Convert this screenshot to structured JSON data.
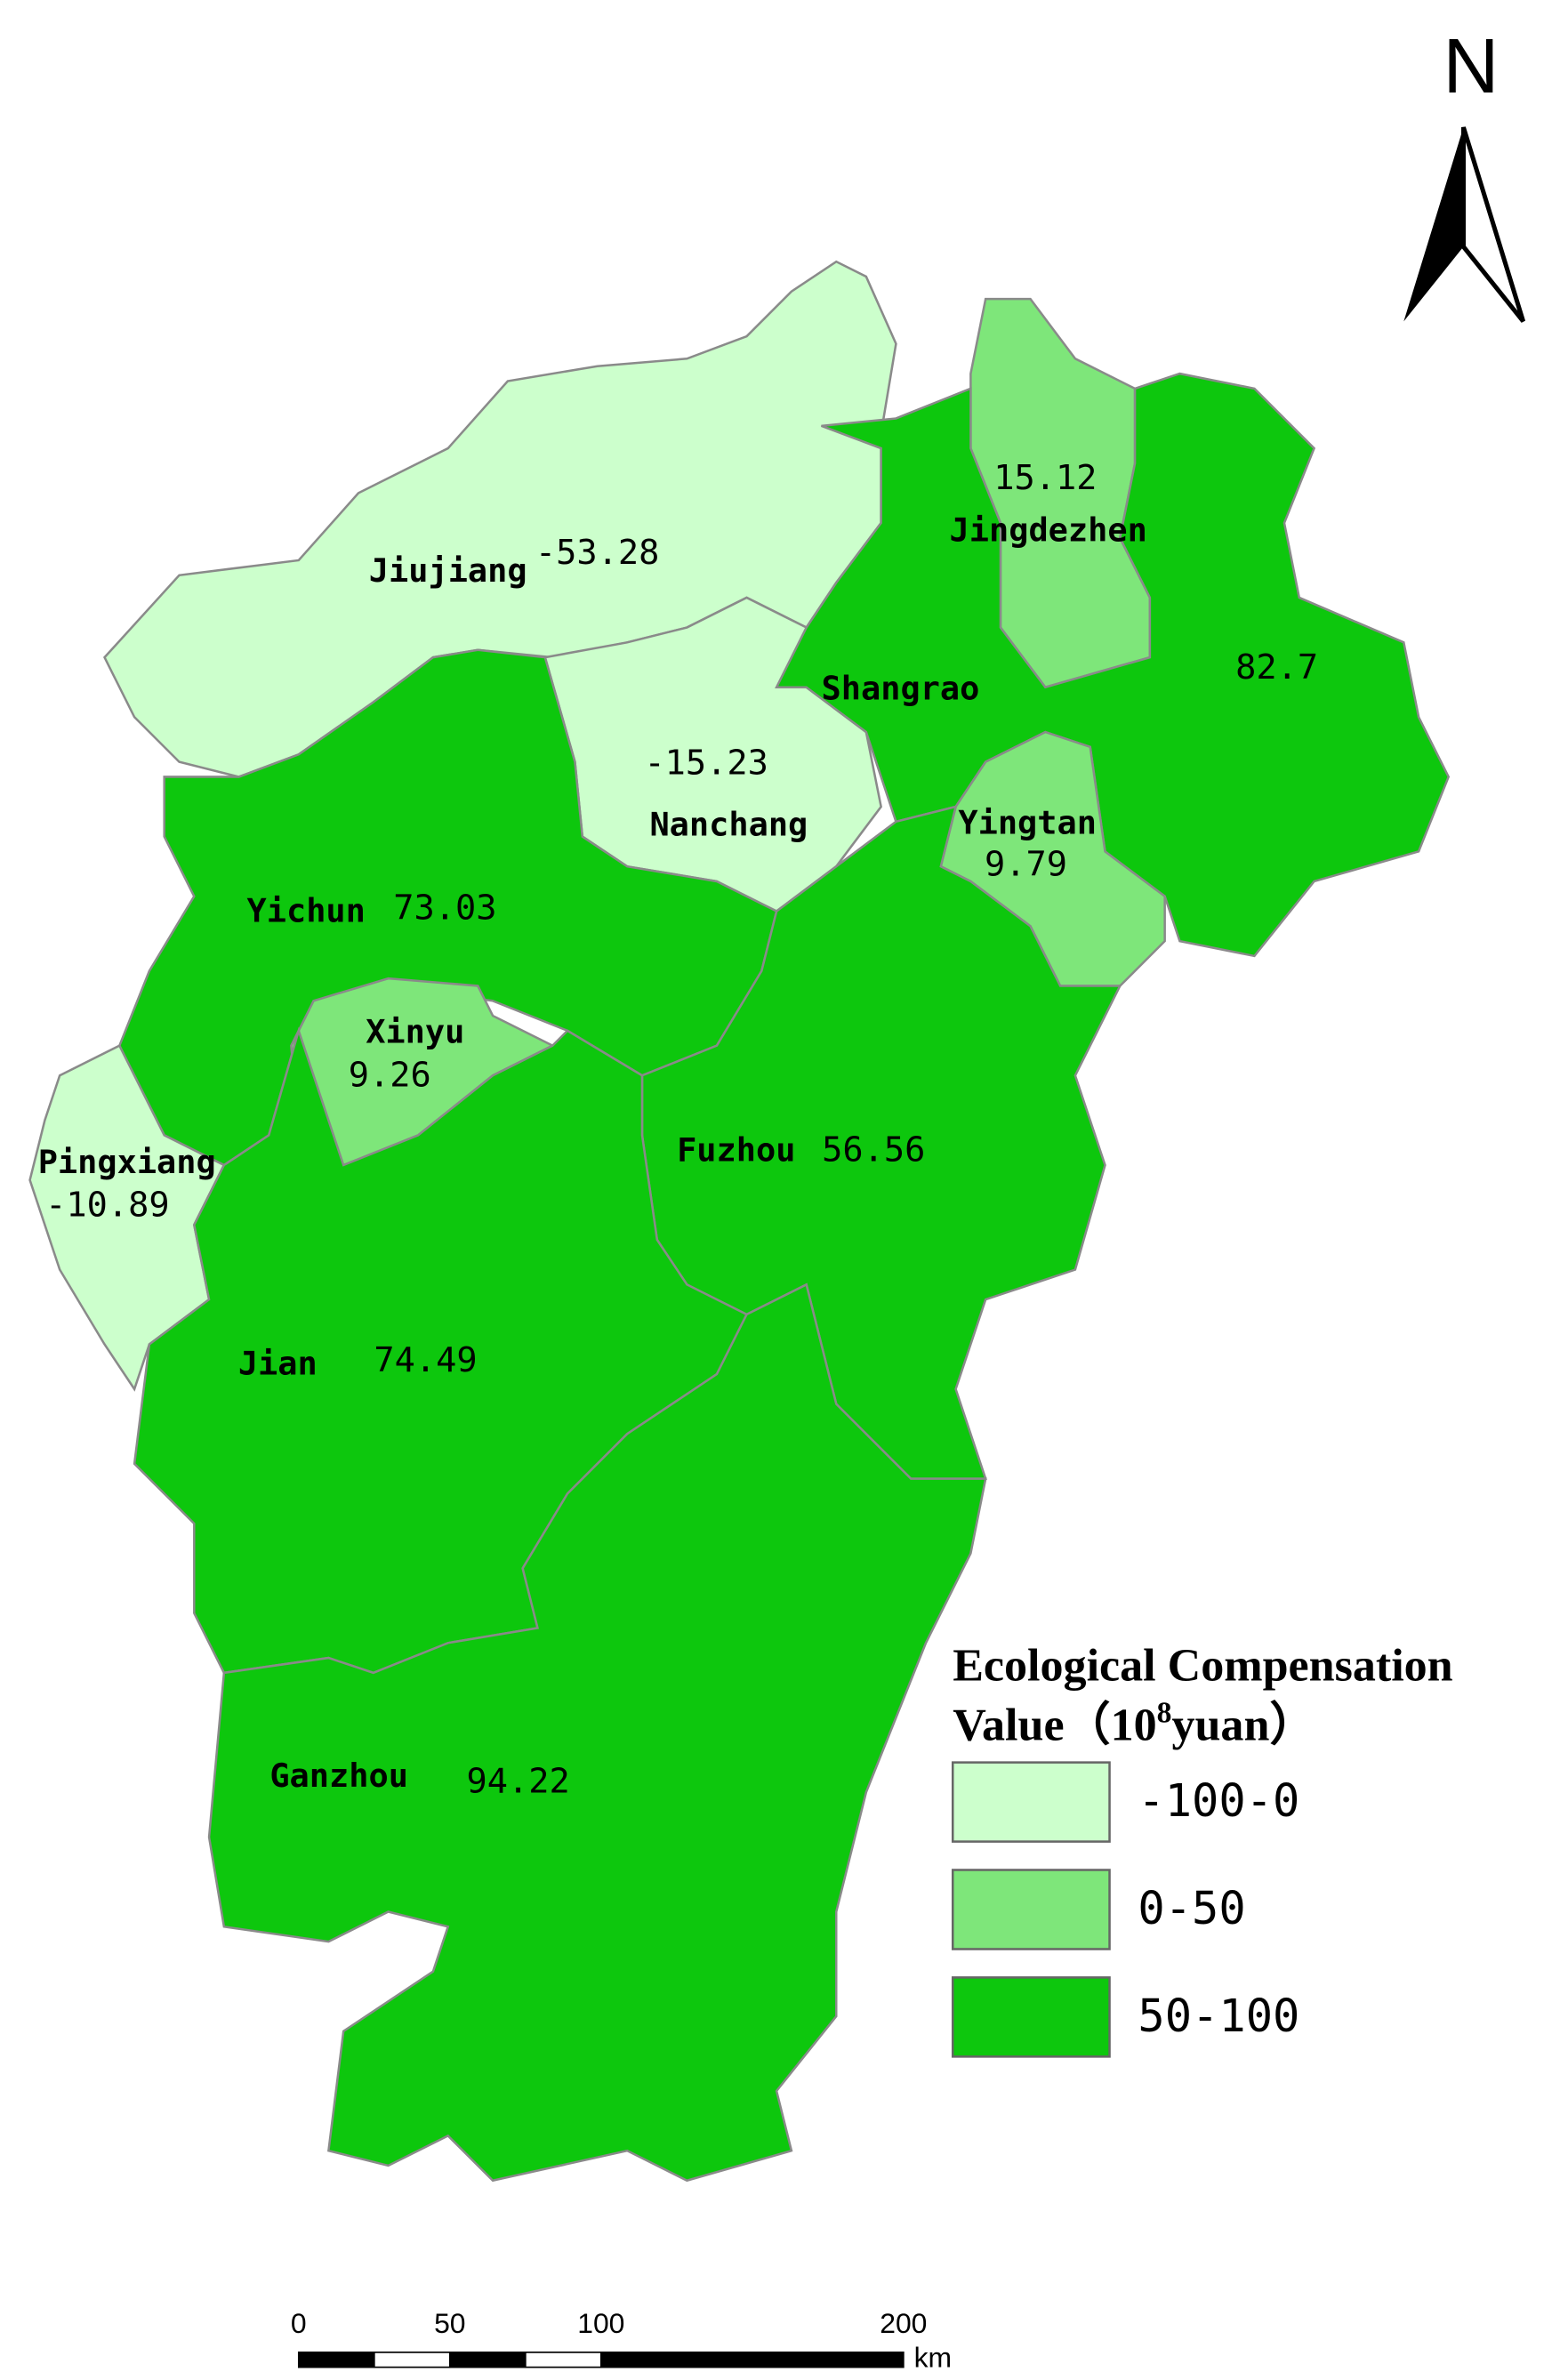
{
  "regions": [
    {
      "name": "Jiujiang",
      "value": -53.28,
      "color": "#ccffcc"
    },
    {
      "name": "Nanchang",
      "value": -15.23,
      "color": "#ccffcc"
    },
    {
      "name": "Jingdezhen",
      "value": 15.12,
      "color": "#7ee67a"
    },
    {
      "name": "Shangrao",
      "value": 82.7,
      "color": "#0dc70d"
    },
    {
      "name": "Yingtan",
      "value": 9.79,
      "color": "#7ee67a"
    },
    {
      "name": "Yichun",
      "value": 73.03,
      "color": "#0dc70d"
    },
    {
      "name": "Xinyu",
      "value": 9.26,
      "color": "#7ee67a"
    },
    {
      "name": "Pingxiang",
      "value": -10.89,
      "color": "#ccffcc"
    },
    {
      "name": "Fuzhou",
      "value": 56.56,
      "color": "#0dc70d"
    },
    {
      "name": "Jian",
      "value": 74.49,
      "color": "#0dc70d"
    },
    {
      "name": "Ganzhou",
      "value": 94.22,
      "color": "#0dc70d"
    }
  ],
  "legend": {
    "title_line1": "Ecological Compensation",
    "title_line2_a": "Value（10",
    "title_line2_sup": "8",
    "title_line2_b": "yuan）",
    "items": [
      {
        "label": "-100-0",
        "color": "#ccffcc"
      },
      {
        "label": "0-50",
        "color": "#7ee67a"
      },
      {
        "label": "50-100",
        "color": "#0dc70d"
      }
    ]
  },
  "north": "N",
  "scale_bar": {
    "ticks": [
      0,
      50,
      100,
      200
    ],
    "unit": "km"
  }
}
